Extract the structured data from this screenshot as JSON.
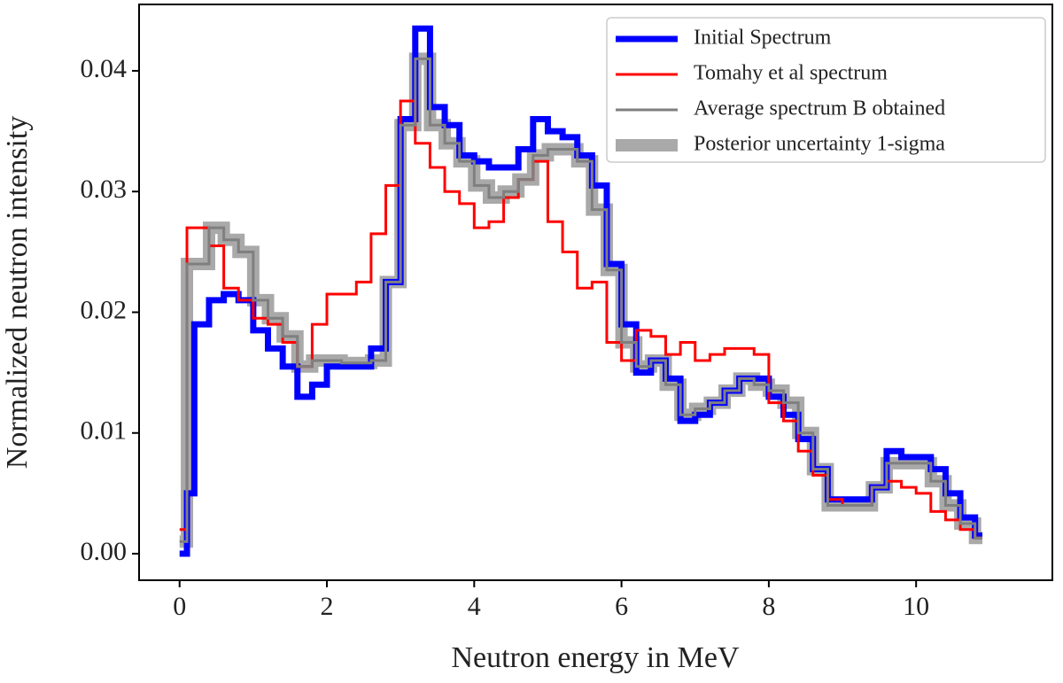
{
  "chart_data": {
    "type": "step",
    "xlabel": "Neutron energy in MeV",
    "ylabel": "Normalized neutron intensity",
    "x": [
      0,
      0.1,
      0.2,
      0.4,
      0.6,
      0.8,
      1.0,
      1.2,
      1.4,
      1.6,
      1.8,
      2.0,
      2.2,
      2.4,
      2.6,
      2.8,
      3.0,
      3.2,
      3.4,
      3.6,
      3.8,
      4.0,
      4.2,
      4.4,
      4.6,
      4.8,
      5.0,
      5.2,
      5.4,
      5.6,
      5.8,
      6.0,
      6.2,
      6.4,
      6.6,
      6.8,
      7.0,
      7.2,
      7.4,
      7.6,
      7.8,
      8.0,
      8.2,
      8.4,
      8.6,
      8.8,
      9.0,
      9.2,
      9.4,
      9.6,
      9.8,
      10.0,
      10.2,
      10.4,
      10.6,
      10.8,
      10.9
    ],
    "series": [
      {
        "name": "Posterior uncertainty 1-sigma",
        "color": "#a9a9a9",
        "width": 14,
        "values": [
          0.001,
          0.024,
          0.024,
          0.027,
          0.026,
          0.025,
          0.021,
          0.0195,
          0.018,
          0.0155,
          0.016,
          0.016,
          0.0158,
          0.0158,
          0.016,
          0.0225,
          0.0355,
          0.041,
          0.0355,
          0.034,
          0.0325,
          0.0305,
          0.0295,
          0.03,
          0.031,
          0.033,
          0.0335,
          0.0335,
          0.0325,
          0.0285,
          0.0235,
          0.0175,
          0.0155,
          0.016,
          0.014,
          0.0115,
          0.012,
          0.0125,
          0.0135,
          0.0145,
          0.014,
          0.0135,
          0.0125,
          0.01,
          0.007,
          0.004,
          0.004,
          0.004,
          0.0055,
          0.0075,
          0.0075,
          0.0075,
          0.006,
          0.004,
          0.0025,
          0.0013,
          0.0013
        ]
      },
      {
        "name": "Initial Spectrum",
        "color": "#0000ff",
        "width": 7,
        "values": [
          0,
          0.005,
          0.019,
          0.021,
          0.0215,
          0.021,
          0.0185,
          0.017,
          0.0155,
          0.013,
          0.014,
          0.0155,
          0.0155,
          0.0155,
          0.017,
          0.0225,
          0.036,
          0.0435,
          0.037,
          0.0355,
          0.033,
          0.0325,
          0.032,
          0.032,
          0.0335,
          0.036,
          0.035,
          0.0345,
          0.033,
          0.0305,
          0.024,
          0.019,
          0.015,
          0.016,
          0.0145,
          0.011,
          0.0115,
          0.0125,
          0.0135,
          0.0145,
          0.0145,
          0.013,
          0.0115,
          0.0095,
          0.007,
          0.0045,
          0.0045,
          0.0045,
          0.0055,
          0.0085,
          0.008,
          0.008,
          0.007,
          0.005,
          0.003,
          0.0015,
          0.0015
        ]
      },
      {
        "name": "Tomahy et al spectrum",
        "color": "#ff0000",
        "width": 3,
        "values": [
          0.002,
          0.027,
          0.027,
          0.0255,
          0.022,
          0.021,
          0.0195,
          0.019,
          0.0175,
          0.0155,
          0.019,
          0.0215,
          0.0215,
          0.0225,
          0.0265,
          0.0305,
          0.0375,
          0.034,
          0.032,
          0.03,
          0.029,
          0.027,
          0.0275,
          0.0295,
          0.031,
          0.0325,
          0.0275,
          0.025,
          0.022,
          0.0225,
          0.0175,
          0.016,
          0.0185,
          0.018,
          0.0165,
          0.0175,
          0.016,
          0.0165,
          0.017,
          0.017,
          0.0165,
          0.0125,
          0.011,
          0.0085,
          0.0065,
          0.0045,
          0.004,
          0.004,
          0.0055,
          0.006,
          0.0055,
          0.005,
          0.0035,
          0.0028,
          0.002,
          0.0013,
          0.0013
        ]
      },
      {
        "name": "Average spectrum B obtained",
        "color": "#7f7f7f",
        "width": 3,
        "values": [
          0.001,
          0.024,
          0.024,
          0.027,
          0.026,
          0.025,
          0.021,
          0.0195,
          0.018,
          0.0155,
          0.016,
          0.016,
          0.0158,
          0.0158,
          0.016,
          0.0225,
          0.0355,
          0.041,
          0.0355,
          0.034,
          0.0325,
          0.0305,
          0.0295,
          0.03,
          0.031,
          0.033,
          0.0335,
          0.0335,
          0.0325,
          0.0285,
          0.0235,
          0.0175,
          0.0155,
          0.016,
          0.014,
          0.0115,
          0.012,
          0.0125,
          0.0135,
          0.0145,
          0.014,
          0.0135,
          0.0125,
          0.01,
          0.007,
          0.004,
          0.004,
          0.004,
          0.0055,
          0.0075,
          0.0075,
          0.0075,
          0.006,
          0.004,
          0.0025,
          0.0013,
          0.0013
        ]
      }
    ],
    "legend_order": [
      1,
      2,
      3,
      0
    ],
    "legend": "upper right",
    "xlim": [
      -0.55,
      11.85
    ],
    "ylim": [
      -0.0022,
      0.0455
    ],
    "xticks": [
      0,
      2,
      4,
      6,
      8,
      10
    ],
    "yticks": [
      {
        "value": 0,
        "label": "0.00"
      },
      {
        "value": 0.01,
        "label": "0.01"
      },
      {
        "value": 0.02,
        "label": "0.02"
      },
      {
        "value": 0.03,
        "label": "0.03"
      },
      {
        "value": 0.04,
        "label": "0.04"
      }
    ]
  }
}
